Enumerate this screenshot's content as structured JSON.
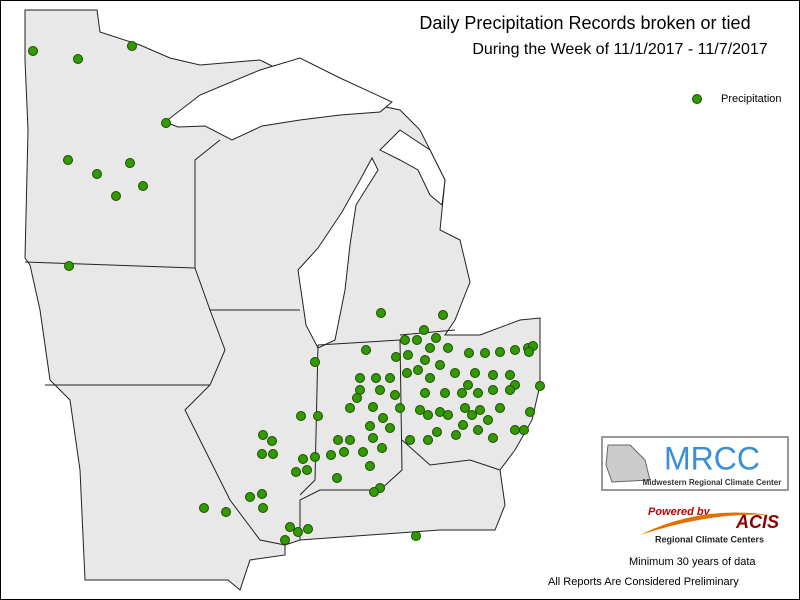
{
  "header": {
    "title": "Daily Precipitation Records broken or tied",
    "subtitle": "During the Week of 11/1/2017 - 11/7/2017"
  },
  "legend": {
    "label": "Precipitation",
    "color": "#339900"
  },
  "logos": {
    "mrcc": "MRCC",
    "mrcc_name": "Midwestern Regional Climate Center",
    "powered_by": "Powered by",
    "acis": "ACIS",
    "acis_name": "Regional Climate Centers"
  },
  "notes": [
    "Minimum 30 years of data",
    "All Reports Are Considered Preliminary"
  ]
}
